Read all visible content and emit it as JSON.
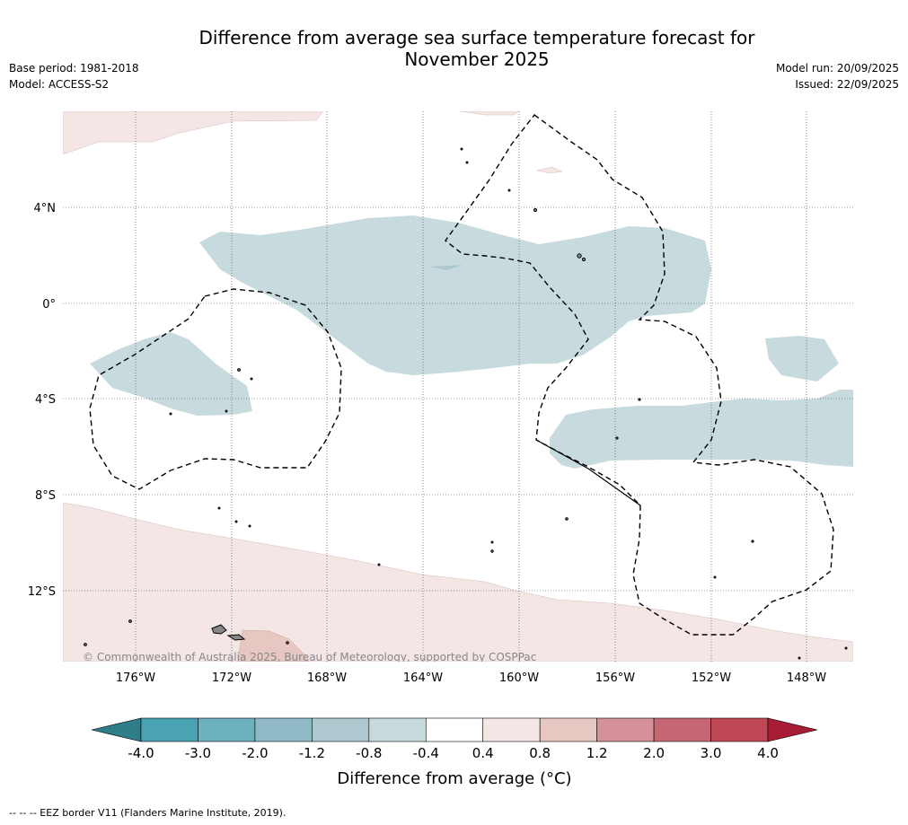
{
  "title_line1": "Difference from average sea surface temperature forecast for",
  "title_line2": "November 2025",
  "meta_left": {
    "base_period": "Base period: 1981-2018",
    "model": "Model: ACCESS-S2"
  },
  "meta_right": {
    "model_run": "Model run: 20/09/2025",
    "issued": "Issued: 22/09/2025"
  },
  "copyright": "© Commonwealth of Australia 2025, Bureau of Meteorology, supported by COSPPac",
  "lat_labels": [
    "4°N",
    "0°",
    "4°S",
    "8°S",
    "12°S"
  ],
  "lon_labels": [
    "176°W",
    "172°W",
    "168°W",
    "164°W",
    "160°W",
    "156°W",
    "152°W",
    "148°W"
  ],
  "colorbar": {
    "title": "Difference from average (°C)",
    "labels": [
      "-4.0",
      "-3.0",
      "-2.0",
      "-1.2",
      "-0.8",
      "-0.4",
      "0.4",
      "0.8",
      "1.2",
      "2.0",
      "3.0",
      "4.0"
    ],
    "colors": [
      "#2e7d89",
      "#4aa3b3",
      "#6db0be",
      "#8fbac5",
      "#aec8cf",
      "#c7dadd",
      "#ffffff",
      "#f3e6e5",
      "#e6c7c2",
      "#d4919a",
      "#c76774",
      "#bf4855",
      "#a91c35"
    ]
  },
  "footer": "--  --  -- EEZ border V11 (Flanders Marine Institute, 2019).",
  "colors": {
    "cool": "#c7dadd",
    "warm_light": "#f3e6e5",
    "warm_mid": "#e6c7c2"
  }
}
